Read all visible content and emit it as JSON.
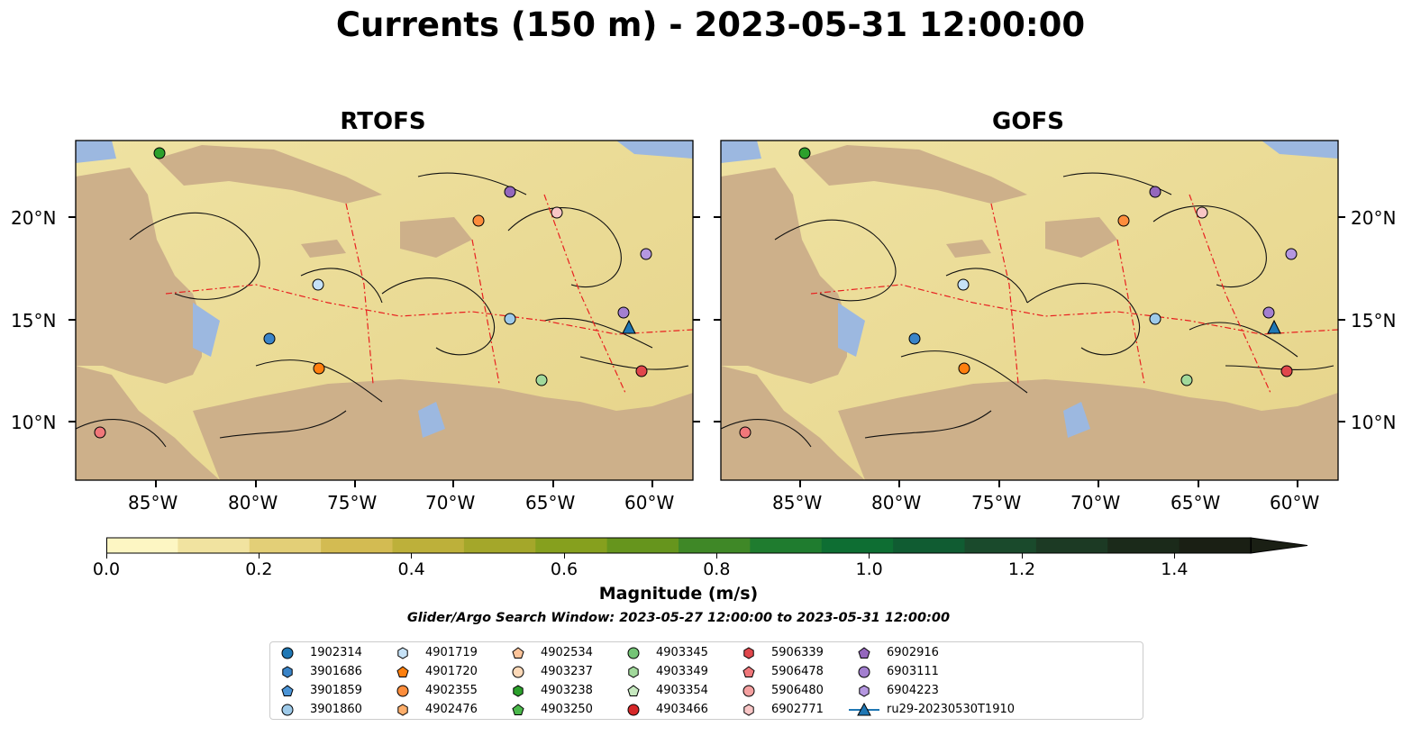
{
  "title": "Currents (150 m) - 2023-05-31 12:00:00",
  "panels": [
    {
      "name": "RTOFS"
    },
    {
      "name": "GOFS"
    }
  ],
  "lat_ticks": [
    "20°N",
    "15°N",
    "10°N"
  ],
  "lon_ticks": [
    "85°W",
    "80°W",
    "75°W",
    "70°W",
    "65°W",
    "60°W"
  ],
  "colorbar": {
    "label": "Magnitude (m/s)",
    "ticks": [
      "0.0",
      "0.2",
      "0.4",
      "0.6",
      "0.8",
      "1.0",
      "1.2",
      "1.4"
    ],
    "colors": [
      "#fdf6c3",
      "#f1e3a0",
      "#e3cf77",
      "#d3bb52",
      "#bdb03a",
      "#a4a72a",
      "#86a01e",
      "#66951d",
      "#3f8827",
      "#1f7c2f",
      "#0e6e33",
      "#105c32",
      "#1a4a2c",
      "#1c3a24",
      "#1b2a1a",
      "#1a1f14"
    ],
    "land_color": "#cdb08a",
    "water_color": "#9cb8e0"
  },
  "search_window": "Glider/Argo Search Window: 2023-05-27 12:00:00 to 2023-05-31 12:00:00",
  "legend": {
    "items": [
      {
        "label": "1902314",
        "color": "#1f77b4",
        "marker": "circle"
      },
      {
        "label": "3901686",
        "color": "#3a84c8",
        "marker": "hexagon"
      },
      {
        "label": "3901859",
        "color": "#4b94d6",
        "marker": "pentagon"
      },
      {
        "label": "3901860",
        "color": "#9ecae9",
        "marker": "circle"
      },
      {
        "label": "4901719",
        "color": "#c6e2f7",
        "marker": "hexagon"
      },
      {
        "label": "4901720",
        "color": "#ff7f0e",
        "marker": "pentagon"
      },
      {
        "label": "4902355",
        "color": "#fd8d3c",
        "marker": "circle"
      },
      {
        "label": "4902476",
        "color": "#fdae6b",
        "marker": "hexagon"
      },
      {
        "label": "4902534",
        "color": "#fdc49a",
        "marker": "pentagon"
      },
      {
        "label": "4903237",
        "color": "#fdd9b8",
        "marker": "circle"
      },
      {
        "label": "4903238",
        "color": "#2ca02c",
        "marker": "hexagon"
      },
      {
        "label": "4903250",
        "color": "#4bb84b",
        "marker": "pentagon"
      },
      {
        "label": "4903345",
        "color": "#74c476",
        "marker": "circle"
      },
      {
        "label": "4903349",
        "color": "#a1d99b",
        "marker": "hexagon"
      },
      {
        "label": "4903354",
        "color": "#c7e9c0",
        "marker": "pentagon"
      },
      {
        "label": "4903466",
        "color": "#d62728",
        "marker": "circle"
      },
      {
        "label": "5906339",
        "color": "#e0474c",
        "marker": "hexagon"
      },
      {
        "label": "5906478",
        "color": "#f0777a",
        "marker": "pentagon"
      },
      {
        "label": "5906480",
        "color": "#f4a0a0",
        "marker": "circle"
      },
      {
        "label": "6902771",
        "color": "#f9c6c6",
        "marker": "hexagon"
      },
      {
        "label": "6902916",
        "color": "#9467bd",
        "marker": "pentagon"
      },
      {
        "label": "6903111",
        "color": "#a37fd0",
        "marker": "circle"
      },
      {
        "label": "6904223",
        "color": "#b597e0",
        "marker": "hexagon"
      },
      {
        "label": "ru29-20230530T1910",
        "color": "#1f77b4",
        "marker": "triangle-line"
      }
    ]
  }
}
